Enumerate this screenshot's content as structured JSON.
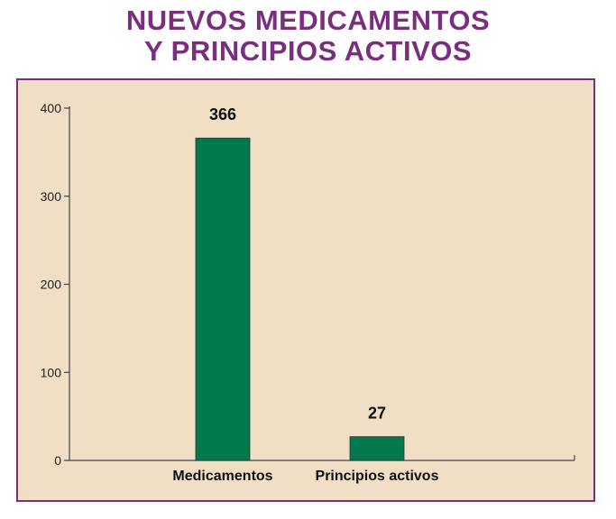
{
  "title": {
    "line1": "NUEVOS MEDICAMENTOS",
    "line2": "Y PRINCIPIOS ACTIVOS"
  },
  "colors": {
    "title": "#7a2f7e",
    "panel_background": "#f0dfc4",
    "panel_border": "#7a2f7e",
    "bar": "#007a4d"
  },
  "chart_data": {
    "type": "bar",
    "title": "NUEVOS MEDICAMENTOS Y PRINCIPIOS ACTIVOS",
    "categories": [
      "Medicamentos",
      "Principios activos"
    ],
    "values": [
      366,
      27
    ],
    "data_labels": [
      "366",
      "27"
    ],
    "xlabel": "",
    "ylabel": "",
    "ylim": [
      0,
      400
    ],
    "yticks": [
      0,
      100,
      200,
      300,
      400
    ],
    "ytick_labels": [
      "0",
      "100",
      "200",
      "300",
      "400"
    ],
    "grid": false,
    "legend": "none"
  }
}
